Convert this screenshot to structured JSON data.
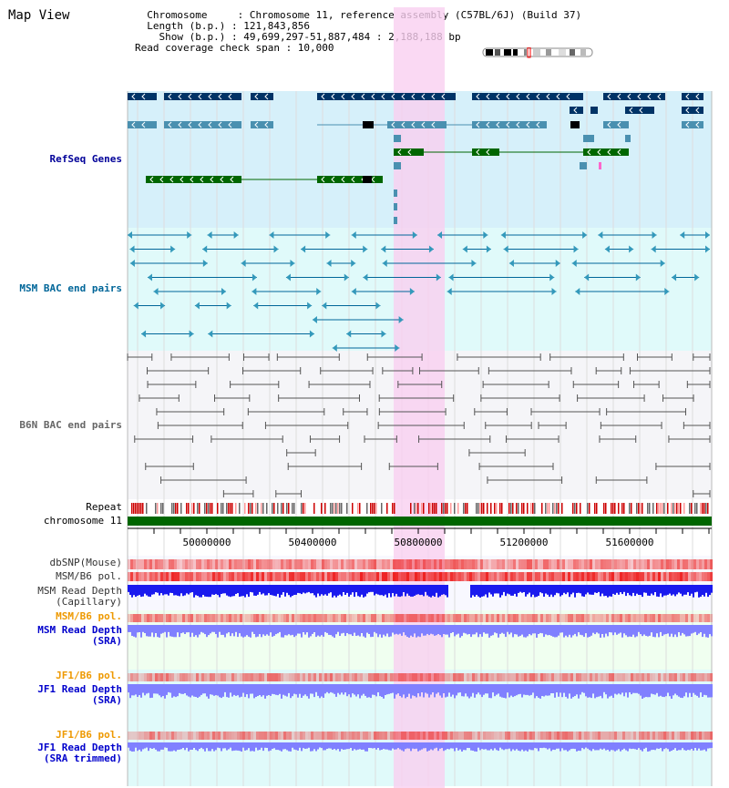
{
  "header": {
    "title": "Map View",
    "info_lines": [
      "  Chromosome     : Chromosome 11, reference assembly (C57BL/6J) (Build 37)",
      "  Length (b.p.) : 121,843,856",
      "    Show (b.p.) : 49,699,297-51,887,484 : 2,188,188 bp",
      "Read coverage check span : 10,000"
    ]
  },
  "tracks": {
    "refseq": {
      "label": "RefSeq Genes",
      "color": "#000099"
    },
    "msm_bac": {
      "label": "MSM BAC end pairs",
      "color": "#006699"
    },
    "b6n_bac": {
      "label": "B6N BAC end pairs",
      "color": "#666666"
    },
    "repeat": {
      "label": "Repeat"
    },
    "chromosome": {
      "label": "chromosome 11",
      "color": "#006600"
    },
    "dbsnp": {
      "label": "dbSNP(Mouse)"
    },
    "msm_b6_pol": {
      "label": "MSM/B6 pol."
    },
    "msm_depth_cap": {
      "label": "MSM Read Depth\n(Capillary)"
    },
    "msm_b6_pol_sra": {
      "label": "MSM/B6 pol."
    },
    "msm_depth_sra": {
      "label": "MSM Read Depth\n(SRA)"
    },
    "jf1_b6_pol": {
      "label": "JF1/B6 pol."
    },
    "jf1_depth_sra": {
      "label": "JF1 Read Depth\n(SRA)"
    },
    "jf1_b6_pol_trim": {
      "label": "JF1/B6 pol."
    },
    "jf1_depth_trim": {
      "label": "JF1 Read Depth\n(SRA trimmed)"
    }
  },
  "ruler": {
    "ticks": [
      "50000000",
      "50400000",
      "50800000",
      "51200000",
      "51600000"
    ]
  },
  "colors": {
    "highlight": "#f9d0f0",
    "refseq_bg": "#d6f0fa",
    "msm_bg": "#e0fafa",
    "b6n_bg": "#f5f5f8",
    "depth_blue": "#1a1aee",
    "depth_light": "#8080ff",
    "pol_red": "#ee2222",
    "orange_label": "#ee9900",
    "blue_label": "#0000cc"
  }
}
